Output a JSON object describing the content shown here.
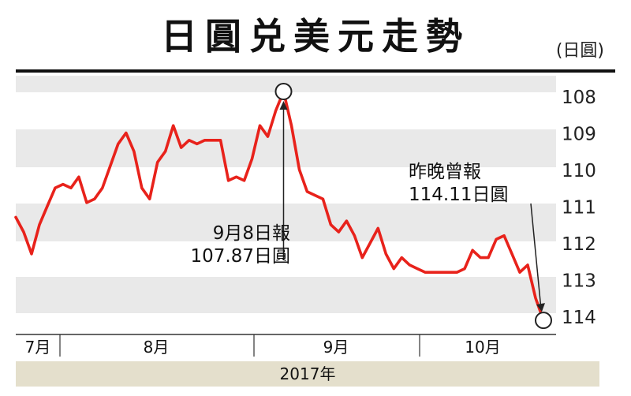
{
  "header": {
    "title": "日圓兑美元走勢",
    "unit": "(日圓)"
  },
  "chart_data": {
    "type": "line",
    "title": "日圓兑美元走勢",
    "unit_label": "(日圓)",
    "x_labels": [
      "7月",
      "8月",
      "9月",
      "10月"
    ],
    "year_label": "2017年",
    "y_ticks": [
      108,
      109,
      110,
      111,
      112,
      113,
      114
    ],
    "ylim": [
      107.8,
      114.3
    ],
    "y_inverted": true,
    "grid": "alternating-bands",
    "line_color": "#e8221b",
    "series": [
      {
        "values": [
          111.3,
          111.7,
          112.3,
          111.5,
          111.0,
          110.5,
          110.4,
          110.5,
          110.2,
          110.9,
          110.8,
          110.5,
          109.9,
          109.3,
          109.0,
          109.5,
          110.5,
          110.8,
          109.8,
          109.5,
          108.8,
          109.4,
          109.2,
          109.3,
          109.2,
          109.2,
          109.2,
          110.3,
          110.2,
          110.3,
          109.7,
          108.8,
          109.1,
          108.4,
          107.87,
          108.8,
          110.0,
          110.6,
          110.7,
          110.8,
          111.5,
          111.7,
          111.4,
          111.8,
          112.4,
          112.0,
          111.6,
          112.3,
          112.7,
          112.4,
          112.6,
          112.7,
          112.8,
          112.8,
          112.8,
          112.8,
          112.8,
          112.7,
          112.2,
          112.4,
          112.4,
          111.9,
          111.8,
          112.3,
          112.8,
          112.6,
          113.5,
          114.11
        ]
      }
    ],
    "annotations": [
      {
        "lines": [
          "9月8日報",
          "107.87日圓"
        ],
        "value": 107.87
      },
      {
        "lines": [
          "昨晚曾報",
          "114.11日圓"
        ],
        "value": 114.11
      }
    ]
  }
}
